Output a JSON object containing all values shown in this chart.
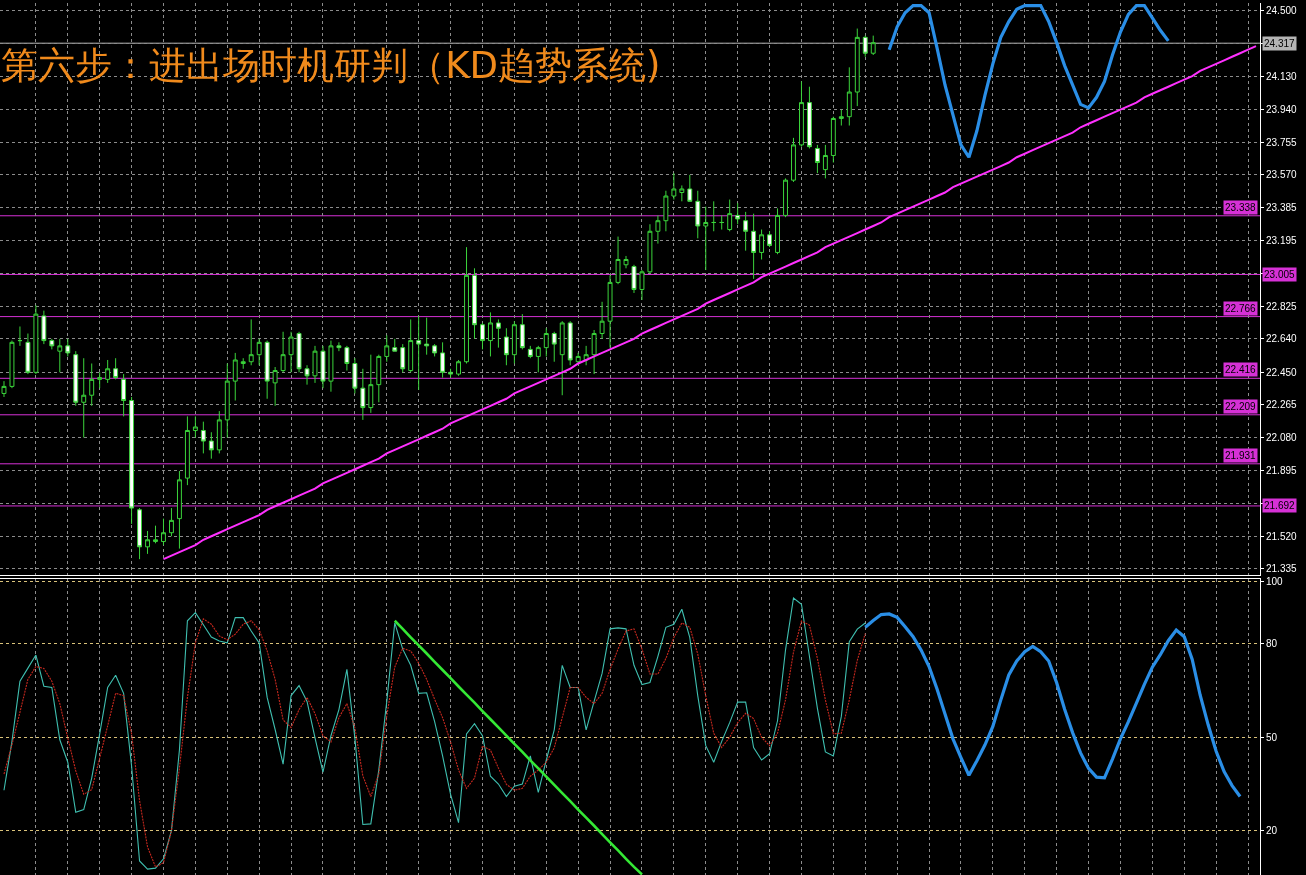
{
  "chart_data": [
    {
      "type": "candlestick",
      "title": "第六步：进出场时机研判（KD趋势系统)",
      "color": "#3bd43b",
      "categories": [
        null,
        null,
        null,
        null,
        null,
        null,
        null,
        null,
        null,
        null,
        null,
        null,
        null,
        null,
        null,
        null,
        null,
        null,
        null,
        null,
        null,
        null,
        null,
        null,
        null,
        null,
        null,
        null,
        null,
        null,
        null,
        null,
        null,
        null,
        null,
        null,
        null,
        null,
        null,
        null,
        null,
        null,
        null,
        null,
        null,
        null,
        null,
        null,
        null,
        null,
        null,
        null,
        null,
        null,
        null,
        null,
        null,
        null,
        null,
        null,
        null,
        null,
        null,
        null,
        null,
        null,
        null,
        null,
        null,
        null,
        null,
        null,
        null,
        null,
        null,
        null,
        null,
        null,
        null,
        null,
        null,
        null,
        null,
        null,
        null,
        null,
        null,
        null,
        null,
        null,
        null,
        null,
        null,
        null,
        null,
        null,
        null,
        null,
        null,
        null,
        null,
        null,
        null,
        null,
        null,
        null,
        null,
        null,
        null,
        null,
        null,
        null,
        null,
        null,
        null,
        null,
        null,
        null,
        null,
        null,
        null,
        null,
        null,
        null,
        null,
        null,
        null,
        null,
        null,
        null,
        null,
        null,
        null,
        null,
        null,
        null,
        null,
        null,
        null,
        null,
        null,
        null,
        null,
        null,
        null,
        null,
        null,
        null,
        null,
        null,
        null,
        null,
        null,
        null,
        null,
        null,
        null,
        null
      ],
      "ohlc": [
        [
          22.33,
          22.4,
          22.31,
          22.37
        ],
        [
          22.37,
          22.63,
          22.36,
          22.62
        ],
        [
          22.63,
          22.71,
          22.6,
          22.63
        ],
        [
          22.62,
          22.67,
          22.44,
          22.45
        ],
        [
          22.45,
          22.83,
          22.44,
          22.78
        ],
        [
          22.77,
          22.8,
          22.61,
          22.63
        ],
        [
          22.63,
          22.64,
          22.58,
          22.6
        ],
        [
          22.57,
          22.64,
          22.45,
          22.6
        ],
        [
          22.6,
          22.64,
          22.54,
          22.56
        ],
        [
          22.55,
          22.57,
          22.26,
          22.28
        ],
        [
          22.28,
          22.53,
          22.08,
          22.32
        ],
        [
          22.32,
          22.5,
          22.26,
          22.41
        ],
        [
          22.41,
          22.45,
          22.36,
          22.42
        ],
        [
          22.41,
          22.52,
          22.39,
          22.47
        ],
        [
          22.47,
          22.53,
          22.41,
          22.42
        ],
        [
          22.41,
          22.44,
          22.2,
          22.29
        ],
        [
          22.29,
          22.31,
          21.59,
          21.68
        ],
        [
          21.67,
          21.68,
          21.39,
          21.46
        ],
        [
          21.46,
          21.55,
          21.42,
          21.5
        ],
        [
          21.49,
          21.58,
          21.48,
          21.5
        ],
        [
          21.49,
          21.62,
          21.47,
          21.54
        ],
        [
          21.54,
          21.68,
          21.52,
          21.61
        ],
        [
          21.62,
          21.89,
          21.45,
          21.84
        ],
        [
          21.85,
          22.2,
          21.81,
          22.12
        ],
        [
          22.12,
          22.2,
          22.08,
          22.14
        ],
        [
          22.12,
          22.17,
          21.99,
          22.06
        ],
        [
          22.06,
          22.11,
          21.96,
          22.01
        ],
        [
          22.01,
          22.23,
          21.99,
          22.18
        ],
        [
          22.18,
          22.5,
          22.08,
          22.4
        ],
        [
          22.4,
          22.56,
          22.29,
          22.52
        ],
        [
          22.5,
          22.53,
          22.47,
          22.51
        ],
        [
          22.51,
          22.75,
          22.49,
          22.55
        ],
        [
          22.55,
          22.64,
          22.49,
          22.62
        ],
        [
          22.62,
          22.63,
          22.3,
          22.4
        ],
        [
          22.39,
          22.48,
          22.26,
          22.46
        ],
        [
          22.46,
          22.68,
          22.45,
          22.55
        ],
        [
          22.55,
          22.68,
          22.45,
          22.65
        ],
        [
          22.67,
          22.68,
          22.45,
          22.47
        ],
        [
          22.47,
          22.49,
          22.38,
          22.43
        ],
        [
          22.43,
          22.6,
          22.39,
          22.57
        ],
        [
          22.57,
          22.6,
          22.36,
          22.4
        ],
        [
          22.4,
          22.63,
          22.34,
          22.6
        ],
        [
          22.6,
          22.62,
          22.57,
          22.59
        ],
        [
          22.59,
          22.6,
          22.46,
          22.5
        ],
        [
          22.5,
          22.53,
          22.33,
          22.36
        ],
        [
          22.36,
          22.47,
          22.18,
          22.25
        ],
        [
          22.25,
          22.55,
          22.22,
          22.38
        ],
        [
          22.38,
          22.55,
          22.28,
          22.54
        ],
        [
          22.54,
          22.66,
          22.51,
          22.6
        ],
        [
          22.59,
          22.64,
          22.57,
          22.57
        ],
        [
          22.59,
          22.61,
          22.45,
          22.47
        ],
        [
          22.46,
          22.75,
          22.45,
          22.63
        ],
        [
          22.63,
          22.77,
          22.35,
          22.61
        ],
        [
          22.61,
          22.76,
          22.55,
          22.6
        ],
        [
          22.6,
          22.61,
          22.54,
          22.56
        ],
        [
          22.56,
          22.62,
          22.42,
          22.45
        ],
        [
          22.45,
          22.47,
          22.42,
          22.44
        ],
        [
          22.44,
          22.52,
          22.43,
          22.51
        ],
        [
          22.51,
          23.16,
          22.5,
          23.0
        ],
        [
          23.0,
          23.04,
          22.64,
          22.72
        ],
        [
          22.72,
          22.73,
          22.58,
          22.63
        ],
        [
          22.63,
          22.79,
          22.54,
          22.73
        ],
        [
          22.73,
          22.75,
          22.59,
          22.7
        ],
        [
          22.65,
          22.7,
          22.49,
          22.55
        ],
        [
          22.55,
          22.74,
          22.5,
          22.72
        ],
        [
          22.72,
          22.78,
          22.58,
          22.59
        ],
        [
          22.58,
          22.6,
          22.53,
          22.54
        ],
        [
          22.54,
          22.6,
          22.45,
          22.59
        ],
        [
          22.59,
          22.7,
          22.54,
          22.67
        ],
        [
          22.67,
          22.68,
          22.51,
          22.61
        ],
        [
          22.55,
          22.74,
          22.32,
          22.73
        ],
        [
          22.73,
          22.74,
          22.49,
          22.52
        ],
        [
          22.51,
          22.56,
          22.49,
          22.54
        ],
        [
          22.52,
          22.6,
          22.49,
          22.55
        ],
        [
          22.55,
          22.69,
          22.44,
          22.67
        ],
        [
          22.67,
          22.85,
          22.64,
          22.74
        ],
        [
          22.74,
          23.0,
          22.59,
          22.96
        ],
        [
          22.96,
          23.22,
          22.95,
          23.09
        ],
        [
          23.06,
          23.11,
          23.04,
          23.09
        ],
        [
          23.05,
          23.06,
          22.9,
          22.92
        ],
        [
          22.92,
          23.03,
          22.86,
          23.02
        ],
        [
          23.02,
          23.29,
          23.01,
          23.25
        ],
        [
          23.25,
          23.34,
          23.18,
          23.31
        ],
        [
          23.31,
          23.48,
          23.25,
          23.45
        ],
        [
          23.45,
          23.58,
          23.43,
          23.49
        ],
        [
          23.47,
          23.51,
          23.42,
          23.49
        ],
        [
          23.49,
          23.57,
          23.42,
          23.42
        ],
        [
          23.42,
          23.48,
          23.21,
          23.28
        ],
        [
          23.28,
          23.39,
          23.03,
          23.3
        ],
        [
          23.3,
          23.42,
          23.25,
          23.3
        ],
        [
          23.3,
          23.34,
          23.26,
          23.3
        ],
        [
          23.26,
          23.43,
          23.25,
          23.35
        ],
        [
          23.34,
          23.41,
          23.29,
          23.32
        ],
        [
          23.31,
          23.36,
          23.14,
          23.25
        ],
        [
          23.25,
          23.35,
          22.98,
          23.13
        ],
        [
          23.13,
          23.26,
          23.09,
          23.23
        ],
        [
          23.23,
          23.25,
          23.16,
          23.17
        ],
        [
          23.13,
          23.38,
          23.12,
          23.34
        ],
        [
          23.34,
          23.55,
          23.33,
          23.54
        ],
        [
          23.54,
          23.78,
          23.53,
          23.74
        ],
        [
          23.74,
          24.1,
          23.73,
          23.98
        ],
        [
          23.98,
          24.07,
          23.72,
          23.73
        ],
        [
          23.72,
          23.74,
          23.58,
          23.64
        ],
        [
          23.6,
          23.74,
          23.55,
          23.68
        ],
        [
          23.68,
          23.9,
          23.64,
          23.89
        ],
        [
          23.89,
          23.94,
          23.85,
          23.9
        ],
        [
          23.9,
          24.18,
          23.85,
          24.04
        ],
        [
          24.04,
          24.4,
          23.96,
          24.35
        ],
        [
          24.35,
          24.36,
          24.24,
          24.26
        ],
        [
          24.26,
          24.36,
          24.25,
          24.32
        ],
        null,
        null,
        null,
        null,
        null,
        null,
        null,
        null,
        null,
        null,
        null,
        null,
        null,
        null,
        null,
        null,
        null,
        null,
        null,
        null,
        null,
        null,
        null,
        null,
        null,
        null,
        null,
        null,
        null,
        null,
        null,
        null,
        null,
        null,
        null,
        null,
        null,
        null,
        null,
        null,
        null,
        null,
        null,
        null,
        null,
        null,
        null,
        null
      ],
      "series": [
        {
          "type": "line",
          "color": "#2a8ee6",
          "values": [
            null,
            null,
            null,
            null,
            null,
            null,
            null,
            null,
            null,
            null,
            null,
            null,
            null,
            null,
            null,
            null,
            null,
            null,
            null,
            null,
            null,
            null,
            null,
            null,
            null,
            null,
            null,
            null,
            null,
            null,
            null,
            null,
            null,
            null,
            null,
            null,
            null,
            null,
            null,
            null,
            null,
            null,
            null,
            null,
            null,
            null,
            null,
            null,
            null,
            null,
            null,
            null,
            null,
            null,
            null,
            null,
            null,
            null,
            null,
            null,
            null,
            null,
            null,
            null,
            null,
            null,
            null,
            null,
            null,
            null,
            null,
            null,
            null,
            null,
            null,
            null,
            null,
            null,
            null,
            null,
            null,
            null,
            null,
            null,
            null,
            null,
            null,
            null,
            null,
            null,
            null,
            null,
            null,
            null,
            null,
            null,
            null,
            null,
            null,
            null,
            null,
            null,
            null,
            null,
            null,
            null,
            null,
            null,
            null,
            null,
            null,
            24.28,
            24.41,
            24.49,
            24.53,
            24.53,
            24.49,
            24.29,
            24.08,
            23.91,
            23.74,
            23.67,
            23.82,
            24.02,
            24.2,
            24.35,
            24.44,
            24.51,
            24.53,
            24.53,
            24.53,
            24.44,
            24.32,
            24.19,
            24.08,
            23.97,
            23.95,
            24.01,
            24.1,
            24.25,
            24.38,
            24.48,
            24.53,
            24.53,
            24.46,
            24.39,
            24.33,
            null,
            null,
            null,
            null,
            null,
            null,
            null,
            null,
            null,
            null,
            null
          ]
        },
        {
          "type": "line",
          "color": "#ff30ff",
          "values": [
            null,
            null,
            null,
            null,
            null,
            null,
            null,
            null,
            null,
            null,
            null,
            null,
            null,
            null,
            null,
            null,
            null,
            null,
            null,
            null,
            21.39,
            21.41,
            21.43,
            21.45,
            21.47,
            21.5,
            21.52,
            21.54,
            21.56,
            21.58,
            21.6,
            21.62,
            21.64,
            21.67,
            21.69,
            21.71,
            21.73,
            21.75,
            21.77,
            21.79,
            21.82,
            21.84,
            21.86,
            21.88,
            21.9,
            21.92,
            21.94,
            21.96,
            21.99,
            22.01,
            22.03,
            22.05,
            22.07,
            22.09,
            22.11,
            22.13,
            22.16,
            22.18,
            22.2,
            22.22,
            22.24,
            22.26,
            22.28,
            22.3,
            22.33,
            22.35,
            22.37,
            22.39,
            22.41,
            22.43,
            22.45,
            22.47,
            22.5,
            22.52,
            22.54,
            22.56,
            22.58,
            22.6,
            22.62,
            22.64,
            22.67,
            22.69,
            22.71,
            22.73,
            22.75,
            22.77,
            22.79,
            22.81,
            22.84,
            22.86,
            22.88,
            22.9,
            22.92,
            22.94,
            22.96,
            22.99,
            23.01,
            23.03,
            23.05,
            23.07,
            23.09,
            23.11,
            23.13,
            23.16,
            23.18,
            23.2,
            23.22,
            23.24,
            23.26,
            23.28,
            23.3,
            23.33,
            23.35,
            23.37,
            23.39,
            23.41,
            23.43,
            23.45,
            23.47,
            23.5,
            23.52,
            23.54,
            23.56,
            23.58,
            23.6,
            23.62,
            23.64,
            23.67,
            23.69,
            23.71,
            23.73,
            23.75,
            23.77,
            23.79,
            23.81,
            23.84,
            23.86,
            23.88,
            23.9,
            23.92,
            23.94,
            23.96,
            23.98,
            24.01,
            24.03,
            24.05,
            24.07,
            24.09,
            24.11,
            24.13,
            24.16,
            24.18,
            24.2,
            24.22,
            24.24,
            24.26,
            24.28,
            24.3
          ]
        }
      ],
      "ylim": [
        21.3,
        24.545
      ],
      "yticks": [
        {
          "value": 21.335,
          "label": "21.335"
        },
        {
          "value": 21.52,
          "label": "21.520"
        },
        {
          "value": 21.705,
          "label": null
        },
        {
          "value": 21.895,
          "label": "21.895"
        },
        {
          "value": 22.08,
          "label": "22.080"
        },
        {
          "value": 22.265,
          "label": "22.265"
        },
        {
          "value": 22.45,
          "label": "22.450"
        },
        {
          "value": 22.64,
          "label": "22.640"
        },
        {
          "value": 22.825,
          "label": "22.825"
        },
        {
          "value": 23.01,
          "label": null
        },
        {
          "value": 23.195,
          "label": "23.195"
        },
        {
          "value": 23.385,
          "label": "23.385"
        },
        {
          "value": 23.57,
          "label": "23.570"
        },
        {
          "value": 23.755,
          "label": "23.755"
        },
        {
          "value": 23.94,
          "label": "23.940"
        },
        {
          "value": 24.13,
          "label": "24.130"
        },
        {
          "value": 24.315,
          "label": null
        },
        {
          "value": 24.5,
          "label": "24.500"
        }
      ],
      "ref_lines": [
        {
          "axis": "y",
          "value": 24.317,
          "label": "24.317",
          "color": "#b4b4b4"
        },
        {
          "axis": "y",
          "value": 23.338,
          "label": "23.338",
          "color": "#d631d6"
        },
        {
          "axis": "y",
          "value": 23.005,
          "label": "23.005",
          "color": "#d631d6"
        },
        {
          "axis": "y",
          "value": 22.766,
          "label": "22.766",
          "color": "#d631d6"
        },
        {
          "axis": "y",
          "value": 22.416,
          "label": "22.416",
          "color": "#d631d6"
        },
        {
          "axis": "y",
          "value": 22.209,
          "label": "22.209",
          "color": "#d631d6"
        },
        {
          "axis": "y",
          "value": 21.931,
          "label": "21.931",
          "color": "#d631d6"
        },
        {
          "axis": "y",
          "value": 21.692,
          "label": "21.692",
          "color": "#d631d6"
        }
      ],
      "grid": true,
      "tick_labels": "y"
    },
    {
      "type": "line",
      "categories": [
        null,
        null,
        null,
        null,
        null,
        null,
        null,
        null,
        null,
        null,
        null,
        null,
        null,
        null,
        null,
        null,
        null,
        null,
        null,
        null,
        null,
        null,
        null,
        null,
        null,
        null,
        null,
        null,
        null,
        null,
        null,
        null,
        null,
        null,
        null,
        null,
        null,
        null,
        null,
        null,
        null,
        null,
        null,
        null,
        null,
        null,
        null,
        null,
        null,
        null,
        null,
        null,
        null,
        null,
        null,
        null,
        null,
        null,
        null,
        null,
        null,
        null,
        null,
        null,
        null,
        null,
        null,
        null,
        null,
        null,
        null,
        null,
        null,
        null,
        null,
        null,
        null,
        null,
        null,
        null,
        null,
        null,
        null,
        null,
        null,
        null,
        null,
        null,
        null,
        null,
        null,
        null,
        null,
        null,
        null,
        null,
        null,
        null,
        null,
        null,
        null,
        null,
        null,
        null,
        null,
        null,
        null,
        null,
        null,
        null,
        null,
        null,
        null,
        null,
        null,
        null,
        null,
        null,
        null,
        null,
        null,
        null,
        null,
        null,
        null,
        null,
        null,
        null,
        null,
        null,
        null,
        null,
        null,
        null,
        null,
        null,
        null,
        null,
        null,
        null,
        null,
        null,
        null,
        null,
        null,
        null,
        null,
        null,
        null,
        null,
        null,
        null,
        null,
        null,
        null,
        null,
        null,
        null
      ],
      "series": [
        {
          "type": "line",
          "color": "#3fbfb0",
          "values": [
            33.0,
            48.7,
            68.0,
            72.2,
            76.4,
            66.4,
            66.0,
            49.2,
            42.0,
            25.9,
            26.8,
            36.9,
            51.1,
            66.0,
            69.9,
            64.1,
            40.8,
            10.3,
            7.7,
            8.0,
            11.0,
            20.0,
            45.9,
            87.4,
            90.0,
            86.1,
            82.2,
            80.9,
            80.3,
            88.4,
            88.4,
            84.1,
            80.3,
            62.8,
            52.5,
            41.4,
            63.4,
            66.6,
            61.5,
            49.8,
            38.8,
            50.5,
            58.9,
            71.8,
            49.8,
            22.0,
            22.2,
            39.5,
            61.5,
            86.7,
            78.3,
            73.1,
            64.1,
            64.3,
            55.0,
            44.0,
            31.7,
            22.6,
            51.1,
            54.4,
            50.5,
            37.5,
            35.0,
            31.0,
            34.3,
            35.0,
            44.0,
            32.3,
            42.7,
            52.4,
            73.1,
            66.0,
            66.0,
            52.4,
            61.5,
            70.5,
            84.8,
            85.1,
            84.8,
            73.1,
            66.9,
            67.6,
            76.0,
            85.3,
            86.3,
            91.1,
            82.0,
            63.3,
            47.3,
            42.0,
            48.7,
            54.7,
            61.3,
            61.3,
            46.7,
            42.7,
            44.7,
            55.3,
            78.0,
            94.7,
            92.7,
            76.0,
            59.3,
            45.3,
            44.0,
            56.7,
            80.7,
            84.7,
            86.7,
            null,
            null,
            null,
            null,
            null,
            null,
            null,
            null,
            null,
            null,
            null,
            null,
            null,
            null,
            null,
            null,
            null,
            null,
            null,
            null,
            null,
            null,
            null,
            null,
            null,
            null,
            null,
            null,
            null,
            null,
            null,
            null,
            null,
            null,
            null,
            null,
            null,
            null,
            null,
            null,
            null,
            null,
            null,
            null,
            null,
            null,
            null,
            null,
            null
          ]
        },
        {
          "type": "line",
          "color": "#c8281e",
          "line_style": "dotted",
          "values": [
            38.2,
            47.6,
            58.0,
            68.6,
            72.7,
            72.1,
            68.0,
            60.8,
            49.8,
            39.2,
            31.7,
            33.2,
            43.3,
            53.7,
            64.1,
            63.4,
            51.1,
            29.7,
            14.8,
            8.4,
            9.7,
            20.0,
            40.1,
            62.8,
            80.3,
            88.0,
            86.3,
            82.5,
            81.3,
            83.1,
            86.3,
            87.4,
            84.5,
            77.7,
            68.6,
            55.6,
            53.1,
            58.9,
            62.8,
            57.6,
            50.5,
            48.5,
            56.3,
            60.8,
            53.1,
            37.6,
            31.0,
            38.2,
            56.9,
            72.5,
            78.6,
            77.7,
            73.8,
            68.6,
            62.2,
            56.3,
            48.5,
            39.5,
            33.6,
            36.9,
            47.2,
            45.9,
            40.1,
            34.9,
            33.0,
            33.6,
            37.5,
            39.5,
            42.0,
            46.6,
            56.3,
            66.0,
            66.0,
            62.8,
            60.8,
            64.1,
            71.8,
            78.3,
            84.1,
            84.8,
            78.3,
            70.3,
            70.3,
            75.3,
            82.0,
            86.7,
            85.3,
            76.7,
            63.3,
            51.3,
            46.7,
            50.0,
            54.7,
            57.7,
            56.0,
            50.0,
            47.3,
            51.3,
            62.0,
            77.3,
            87.3,
            86.0,
            75.3,
            62.0,
            51.1,
            51.3,
            62.0,
            74.7,
            83.3,
            null,
            null,
            null,
            null,
            null,
            null,
            null,
            null,
            null,
            null,
            null,
            null,
            null,
            null,
            null,
            null,
            null,
            null,
            null,
            null,
            null,
            null,
            null,
            null,
            null,
            null,
            null,
            null,
            null,
            null,
            null,
            null,
            null,
            null,
            null,
            null,
            null,
            null,
            null,
            null,
            null,
            null,
            null,
            null,
            null,
            null,
            null,
            null,
            null
          ]
        },
        {
          "type": "line",
          "color": "#2a8ee6",
          "values": [
            null,
            null,
            null,
            null,
            null,
            null,
            null,
            null,
            null,
            null,
            null,
            null,
            null,
            null,
            null,
            null,
            null,
            null,
            null,
            null,
            null,
            null,
            null,
            null,
            null,
            null,
            null,
            null,
            null,
            null,
            null,
            null,
            null,
            null,
            null,
            null,
            null,
            null,
            null,
            null,
            null,
            null,
            null,
            null,
            null,
            null,
            null,
            null,
            null,
            null,
            null,
            null,
            null,
            null,
            null,
            null,
            null,
            null,
            null,
            null,
            null,
            null,
            null,
            null,
            null,
            null,
            null,
            null,
            null,
            null,
            null,
            null,
            null,
            null,
            null,
            null,
            null,
            null,
            null,
            null,
            null,
            null,
            null,
            null,
            null,
            null,
            null,
            null,
            null,
            null,
            null,
            null,
            null,
            null,
            null,
            null,
            null,
            null,
            null,
            null,
            null,
            null,
            null,
            null,
            null,
            null,
            null,
            null,
            85.3,
            87.5,
            89.4,
            89.6,
            88.5,
            85.5,
            82.3,
            78.0,
            72.7,
            65.5,
            57.5,
            49.5,
            43.5,
            37.8,
            42.5,
            47.5,
            53.5,
            62.0,
            70.0,
            74.5,
            77.5,
            79.2,
            77.5,
            74.5,
            67.5,
            59.0,
            51.5,
            45.0,
            40.0,
            37.2,
            37.0,
            43.0,
            49.5,
            55.0,
            61.0,
            67.0,
            72.5,
            76.5,
            81.0,
            84.4,
            82.3,
            75.0,
            63.5,
            54.0,
            45.5,
            39.0,
            34.5,
            31.0,
            null,
            null
          ]
        },
        {
          "type": "line",
          "color": "#35e835",
          "values": [
            null,
            null,
            null,
            null,
            null,
            null,
            null,
            null,
            null,
            null,
            null,
            null,
            null,
            null,
            null,
            null,
            null,
            null,
            null,
            null,
            null,
            null,
            null,
            null,
            null,
            null,
            null,
            null,
            null,
            null,
            null,
            null,
            null,
            null,
            null,
            null,
            null,
            null,
            null,
            null,
            null,
            null,
            null,
            null,
            null,
            null,
            null,
            null,
            null,
            87.4,
            84.8,
            82.1,
            79.5,
            76.9,
            74.2,
            71.6,
            69.0,
            66.3,
            63.7,
            61.1,
            58.4,
            55.8,
            53.2,
            50.5,
            47.9,
            45.3,
            42.6,
            40.0,
            37.4,
            34.7,
            32.1,
            29.5,
            26.8,
            24.2,
            21.6,
            18.9,
            16.3,
            13.7,
            11.0,
            8.4,
            6.0,
            null,
            null,
            null,
            null,
            null,
            null,
            null,
            null,
            null,
            null,
            null,
            null,
            null,
            null,
            null,
            null,
            null,
            null,
            null,
            null,
            null,
            null,
            null,
            null,
            null,
            null,
            null,
            null,
            null,
            null,
            null,
            null,
            null,
            null,
            null,
            null,
            null,
            null,
            null,
            null,
            null,
            null,
            null,
            null,
            null,
            null,
            null,
            null,
            null,
            null,
            null,
            null,
            null,
            null,
            null,
            null,
            null,
            null,
            null,
            null,
            null,
            null,
            null,
            null,
            null,
            null,
            null,
            null,
            null,
            null,
            null,
            null,
            null,
            null,
            null,
            null,
            null
          ]
        }
      ],
      "ylim": [
        5.8,
        100.8
      ],
      "yticks": [
        20,
        50,
        80,
        100
      ],
      "grid": true,
      "tick_labels": "y"
    }
  ]
}
